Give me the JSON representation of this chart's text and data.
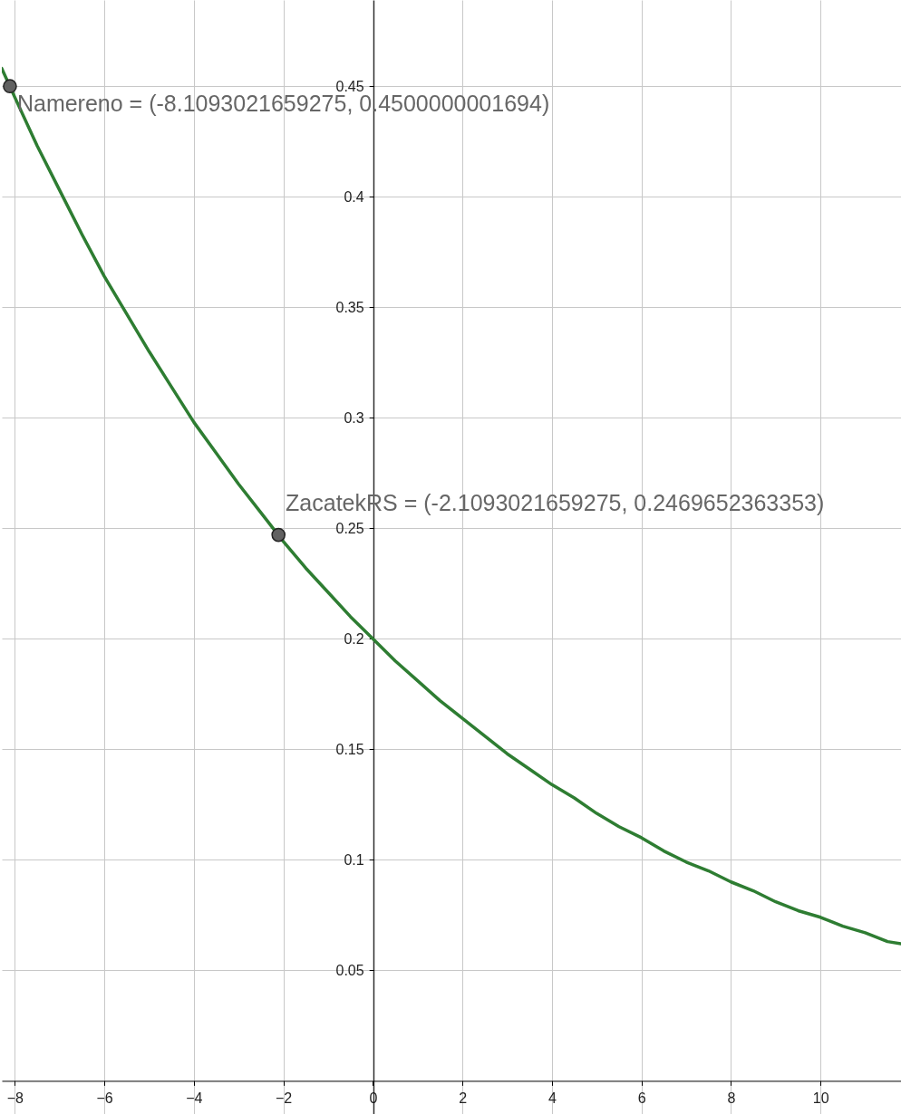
{
  "chart_data": {
    "type": "line",
    "xlim": [
      -8.29,
      11.8
    ],
    "ylim": [
      -0.015,
      0.489
    ],
    "xticks": [
      -8,
      -6,
      -4,
      -2,
      0,
      2,
      4,
      6,
      8,
      10
    ],
    "yticks": [
      0.05,
      0.1,
      0.15,
      0.2,
      0.25,
      0.3,
      0.35,
      0.4,
      0.45
    ],
    "grid": true,
    "series": [
      {
        "color": "#2e7d32",
        "x": [
          -8.29,
          -8,
          -7.5,
          -7,
          -6.5,
          -6,
          -5.5,
          -5,
          -4.5,
          -4,
          -3.5,
          -3,
          -2.5,
          -2,
          -1.5,
          -1,
          -0.5,
          0,
          0.5,
          1,
          1.5,
          2,
          2.5,
          3,
          3.5,
          4,
          4.5,
          5,
          5.5,
          6,
          6.5,
          7,
          7.5,
          8,
          8.5,
          9,
          9.5,
          10,
          10.5,
          11,
          11.5,
          11.8
        ],
        "values": [
          0.458,
          0.445,
          0.423,
          0.403,
          0.383,
          0.364,
          0.347,
          0.33,
          0.314,
          0.298,
          0.284,
          0.27,
          0.257,
          0.244,
          0.232,
          0.221,
          0.21,
          0.2,
          0.19,
          0.181,
          0.172,
          0.164,
          0.156,
          0.148,
          0.141,
          0.134,
          0.128,
          0.121,
          0.115,
          0.11,
          0.104,
          0.099,
          0.095,
          0.09,
          0.086,
          0.081,
          0.077,
          0.074,
          0.07,
          0.067,
          0.063,
          0.062
        ]
      },
      {
        "type": "scatter",
        "color": "#616161",
        "marker": "circle",
        "x": [
          -8.109,
          -2.109
        ],
        "values": [
          0.45,
          0.247
        ]
      }
    ],
    "annotations": [
      {
        "text": "Namereno = (-8.1093021659275, 0.4500000001694)",
        "x": -8.1093021659275,
        "y": 0.4500000001694
      },
      {
        "text": "ZacatekRS = (-2.1093021659275, 0.2469652363353)",
        "x": -2.1093021659275,
        "y": 0.2469652363353
      }
    ]
  }
}
